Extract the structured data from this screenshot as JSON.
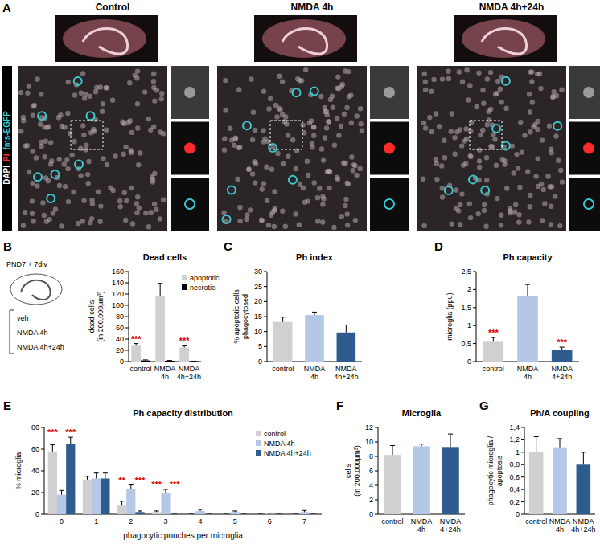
{
  "panel_a": {
    "label": "A",
    "columns": [
      "Control",
      "NMDA 4h",
      "NMDA 4h+24h"
    ],
    "stains": [
      {
        "text": "DAPI",
        "color": "#ffffff"
      },
      {
        "text": "PI",
        "color": "#ff2a2a"
      },
      {
        "text": "fms-EGFP",
        "color": "#3cc8d0"
      }
    ]
  },
  "schematic_b": {
    "title": "PND7 + 7div",
    "conditions": [
      "veh",
      "NMDA 4h",
      "NMDA 4h+24h"
    ]
  },
  "chart_data": [
    {
      "type": "bar",
      "panel_label": "B",
      "title": "Dead cells",
      "ylabel": "dead cells\n(in 200,000µm³)",
      "categories": [
        "control",
        "NMDA 4h",
        "NMDA 4h+24h"
      ],
      "series": [
        {
          "name": "apoptotic",
          "color": "#d0d0d0",
          "values": [
            28,
            117,
            25
          ],
          "errors": [
            4,
            22,
            3
          ]
        },
        {
          "name": "necrotic",
          "color": "#000000",
          "values": [
            2,
            1.5,
            0.5
          ],
          "errors": [
            1,
            0.5,
            0.3
          ]
        }
      ],
      "ylim": [
        0,
        160
      ],
      "yticks": [
        0,
        20,
        40,
        60,
        80,
        100,
        120,
        140,
        160
      ],
      "grid": false,
      "legend": "upper right",
      "annotations": [
        {
          "text": "***",
          "series": 0,
          "index": 0
        },
        {
          "text": "***",
          "series": 0,
          "index": 2
        }
      ]
    },
    {
      "type": "bar",
      "panel_label": "C",
      "title": "Ph index",
      "ylabel": "% apoptotic cells\nphagocytosed",
      "categories": [
        "control",
        "NMDA 4h",
        "NMDA 4h+24h"
      ],
      "values": [
        13.2,
        15.5,
        9.7
      ],
      "errors": [
        1.6,
        1.0,
        2.5
      ],
      "colors": [
        "#d0d0d0",
        "#b4c7e7",
        "#2f5c8f"
      ],
      "ylim": [
        0,
        30
      ],
      "yticks": [
        0,
        5,
        10,
        15,
        20,
        25,
        30
      ],
      "grid": false
    },
    {
      "type": "bar",
      "panel_label": "D",
      "title": "Ph capacity",
      "ylabel": "microglia (ppu)",
      "categories": [
        "control",
        "NMDA 4h",
        "NMDA 4+24h"
      ],
      "values": [
        0.55,
        1.82,
        0.33
      ],
      "errors": [
        0.12,
        0.32,
        0.07
      ],
      "colors": [
        "#d0d0d0",
        "#b4c7e7",
        "#2f5c8f"
      ],
      "ylim": [
        0,
        2.5
      ],
      "yticks": [
        0,
        {
          "value": 0.5,
          "label": "0,5"
        },
        1,
        {
          "value": 1.5,
          "label": "1,5"
        },
        2,
        {
          "value": 2.5,
          "label": "2,5"
        }
      ],
      "grid": false,
      "annotations": [
        {
          "text": "***",
          "index": 0
        },
        {
          "text": "***",
          "index": 2
        }
      ]
    },
    {
      "type": "bar",
      "panel_label": "E",
      "title": "Ph capacity distribution",
      "ylabel": "% microglia",
      "xlabel": "phagocytic pouches per microglia",
      "categories": [
        "0",
        "1",
        "2",
        "3",
        "4",
        "5",
        "6",
        "7"
      ],
      "series": [
        {
          "name": "control",
          "color": "#d0d0d0",
          "values": [
            58,
            32,
            8,
            2,
            0,
            0,
            0,
            0
          ],
          "errors": [
            6,
            3,
            4,
            1,
            0,
            0,
            0,
            0
          ]
        },
        {
          "name": "NMDA 4h",
          "color": "#b4c7e7",
          "values": [
            18,
            33,
            23,
            20,
            3,
            2,
            0.5,
            2
          ],
          "errors": [
            4,
            5,
            4,
            3,
            1.5,
            1,
            0.5,
            1.5
          ]
        },
        {
          "name": "NMDA 4h+24h",
          "color": "#2f5c8f",
          "values": [
            65,
            33,
            2,
            0,
            0,
            0,
            0,
            0
          ],
          "errors": [
            6,
            5,
            1,
            0,
            0,
            0,
            0,
            0
          ]
        }
      ],
      "ylim": [
        0,
        80
      ],
      "yticks": [
        0,
        20,
        40,
        60,
        80
      ],
      "grid": false,
      "legend": "upper right",
      "annotations": [
        {
          "text": "***",
          "series": 0,
          "index": 0
        },
        {
          "text": "***",
          "series": 2,
          "index": 0
        },
        {
          "text": "**",
          "series": 0,
          "index": 2
        },
        {
          "text": "***",
          "series": 2,
          "index": 2
        },
        {
          "text": "***",
          "series": 0,
          "index": 3
        },
        {
          "text": "***",
          "series": 2,
          "index": 3
        }
      ]
    },
    {
      "type": "bar",
      "panel_label": "F",
      "title": "Microglia",
      "ylabel": "cells\n(in 200,000µm³)",
      "categories": [
        "control",
        "NMDA 4h",
        "NMDA 4+24h"
      ],
      "values": [
        8.2,
        9.4,
        9.3
      ],
      "errors": [
        1.3,
        0.3,
        1.8
      ],
      "colors": [
        "#d0d0d0",
        "#b4c7e7",
        "#2f5c8f"
      ],
      "ylim": [
        0,
        12
      ],
      "yticks": [
        0,
        2,
        4,
        6,
        8,
        10,
        12
      ],
      "grid": false
    },
    {
      "type": "bar",
      "panel_label": "G",
      "title": "Ph/A coupling",
      "ylabel": "phagocytic microglia /\napoptosis",
      "categories": [
        "control",
        "NMDA 4h",
        "NMDA 4h+24h"
      ],
      "values": [
        1.0,
        1.08,
        0.8
      ],
      "errors": [
        0.25,
        0.14,
        0.2
      ],
      "colors": [
        "#d0d0d0",
        "#b4c7e7",
        "#2f5c8f"
      ],
      "ylim": [
        0,
        1.4
      ],
      "yticks": [
        0,
        {
          "value": 0.2,
          "label": "0,2"
        },
        {
          "value": 0.4,
          "label": "0,4"
        },
        {
          "value": 0.6,
          "label": "0,6"
        },
        {
          "value": 0.8,
          "label": "0,8"
        },
        1,
        {
          "value": 1.2,
          "label": "1,2"
        },
        {
          "value": 1.4,
          "label": "1,4"
        }
      ],
      "grid": false
    }
  ]
}
